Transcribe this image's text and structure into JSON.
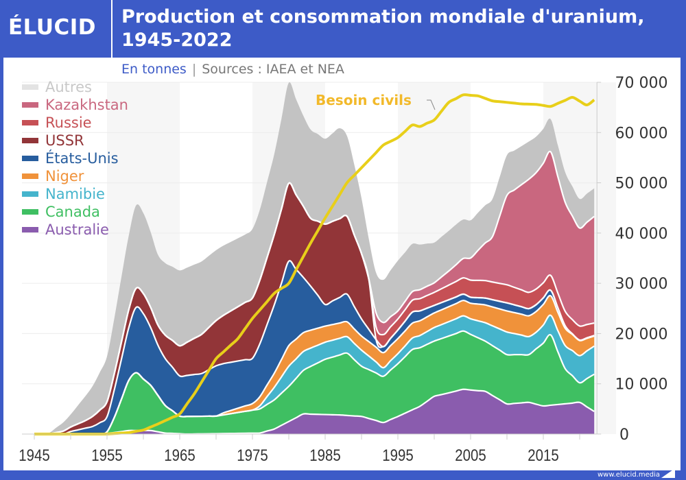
{
  "brand": {
    "logo": "ÉLUCID",
    "url": "www.elucid.media"
  },
  "colors": {
    "brand_blue": "#3d5bc7",
    "demand_line": "#e8cf1a",
    "demand_label": "#f2b92a"
  },
  "chart_data": {
    "type": "area",
    "stacked": true,
    "title": "Production et consommation mondiale d'uranium, 1945-2022",
    "subtitle_unit": "En tonnes",
    "subtitle_sources": "Sources : IAEA et NEA",
    "xlabel": "",
    "ylabel": "",
    "xlim": [
      1945,
      2022
    ],
    "ylim": [
      0,
      70000
    ],
    "x_ticks": [
      "1945",
      "1955",
      "1965",
      "1975",
      "1985",
      "1995",
      "2005",
      "2015"
    ],
    "y_ticks": [
      "0",
      "10 000",
      "20 000",
      "30 000",
      "40 000",
      "50 000",
      "60 000",
      "70 000"
    ],
    "y_tick_values": [
      0,
      10000,
      20000,
      30000,
      40000,
      50000,
      60000,
      70000
    ],
    "grid": true,
    "legend_position": "top-left",
    "series": [
      {
        "name": "Australie",
        "color": "#8a5cae",
        "points": [
          [
            1945,
            0
          ],
          [
            1954,
            0
          ],
          [
            1956,
            300
          ],
          [
            1958,
            700
          ],
          [
            1961,
            700
          ],
          [
            1963,
            200
          ],
          [
            1966,
            0
          ],
          [
            1976,
            200
          ],
          [
            1978,
            1000
          ],
          [
            1980,
            2500
          ],
          [
            1982,
            4000
          ],
          [
            1987,
            3800
          ],
          [
            1990,
            3500
          ],
          [
            1993,
            2300
          ],
          [
            1995,
            3500
          ],
          [
            1998,
            5500
          ],
          [
            2000,
            7500
          ],
          [
            2004,
            8900
          ],
          [
            2007,
            8500
          ],
          [
            2010,
            6000
          ],
          [
            2013,
            6300
          ],
          [
            2015,
            5600
          ],
          [
            2020,
            6300
          ],
          [
            2022,
            4500
          ]
        ]
      },
      {
        "name": "Canada",
        "color": "#3fbf62",
        "points": [
          [
            1945,
            0
          ],
          [
            1954,
            0
          ],
          [
            1955,
            300
          ],
          [
            1956,
            3000
          ],
          [
            1958,
            10000
          ],
          [
            1959,
            11500
          ],
          [
            1961,
            9000
          ],
          [
            1963,
            5500
          ],
          [
            1965,
            3500
          ],
          [
            1970,
            3500
          ],
          [
            1976,
            4800
          ],
          [
            1978,
            5800
          ],
          [
            1980,
            7000
          ],
          [
            1983,
            9500
          ],
          [
            1985,
            11000
          ],
          [
            1988,
            12400
          ],
          [
            1990,
            10000
          ],
          [
            1993,
            9200
          ],
          [
            1995,
            10500
          ],
          [
            1997,
            12000
          ],
          [
            2000,
            11000
          ],
          [
            2004,
            11600
          ],
          [
            2007,
            10000
          ],
          [
            2010,
            9800
          ],
          [
            2013,
            9500
          ],
          [
            2016,
            14000
          ],
          [
            2018,
            7000
          ],
          [
            2020,
            3900
          ],
          [
            2022,
            7400
          ]
        ]
      },
      {
        "name": "Namibie",
        "color": "#45b4cc",
        "points": [
          [
            1945,
            0
          ],
          [
            1975,
            0
          ],
          [
            1976,
            600
          ],
          [
            1978,
            2500
          ],
          [
            1980,
            4000
          ],
          [
            1985,
            3400
          ],
          [
            1990,
            3200
          ],
          [
            1993,
            1700
          ],
          [
            1995,
            2000
          ],
          [
            2000,
            2700
          ],
          [
            2005,
            3100
          ],
          [
            2010,
            4500
          ],
          [
            2014,
            3300
          ],
          [
            2017,
            4200
          ],
          [
            2020,
            5400
          ],
          [
            2022,
            5600
          ]
        ]
      },
      {
        "name": "Niger",
        "color": "#f0923a",
        "points": [
          [
            1945,
            0
          ],
          [
            1970,
            0
          ],
          [
            1971,
            400
          ],
          [
            1975,
            1300
          ],
          [
            1978,
            2800
          ],
          [
            1980,
            4100
          ],
          [
            1985,
            3200
          ],
          [
            1990,
            2800
          ],
          [
            1993,
            3000
          ],
          [
            1995,
            3000
          ],
          [
            2000,
            2900
          ],
          [
            2005,
            3100
          ],
          [
            2010,
            4200
          ],
          [
            2015,
            4100
          ],
          [
            2020,
            3000
          ],
          [
            2022,
            2000
          ]
        ]
      },
      {
        "name": "États-Unis",
        "color": "#275d9e",
        "points": [
          [
            1945,
            0
          ],
          [
            1949,
            0
          ],
          [
            1950,
            500
          ],
          [
            1953,
            1500
          ],
          [
            1955,
            3000
          ],
          [
            1957,
            8000
          ],
          [
            1959,
            13000
          ],
          [
            1960,
            13000
          ],
          [
            1962,
            10000
          ],
          [
            1965,
            8000
          ],
          [
            1968,
            8500
          ],
          [
            1970,
            10000
          ],
          [
            1975,
            9000
          ],
          [
            1977,
            12000
          ],
          [
            1980,
            16800
          ],
          [
            1982,
            11000
          ],
          [
            1985,
            4300
          ],
          [
            1988,
            5500
          ],
          [
            1990,
            3400
          ],
          [
            1992,
            1500
          ],
          [
            1993,
            1200
          ],
          [
            1997,
            2200
          ],
          [
            2000,
            1500
          ],
          [
            2005,
            1200
          ],
          [
            2010,
            1600
          ],
          [
            2015,
            1300
          ],
          [
            2017,
            900
          ],
          [
            2019,
            100
          ],
          [
            2022,
            100
          ]
        ]
      },
      {
        "name": "USSR",
        "color": "#923538",
        "points": [
          [
            1945,
            0
          ],
          [
            1947,
            0
          ],
          [
            1948,
            300
          ],
          [
            1952,
            1500
          ],
          [
            1955,
            3000
          ],
          [
            1960,
            4000
          ],
          [
            1962,
            4000
          ],
          [
            1965,
            6000
          ],
          [
            1970,
            9000
          ],
          [
            1975,
            12000
          ],
          [
            1978,
            14000
          ],
          [
            1980,
            15500
          ],
          [
            1983,
            13500
          ],
          [
            1985,
            16000
          ],
          [
            1988,
            15500
          ],
          [
            1990,
            13000
          ],
          [
            1991,
            10000
          ],
          [
            1992,
            0
          ],
          [
            2022,
            0
          ]
        ]
      },
      {
        "name": "Russie",
        "color": "#c65055",
        "points": [
          [
            1945,
            0
          ],
          [
            1991,
            0
          ],
          [
            1992,
            2500
          ],
          [
            1995,
            2200
          ],
          [
            2000,
            2600
          ],
          [
            2005,
            3400
          ],
          [
            2010,
            3600
          ],
          [
            2015,
            3000
          ],
          [
            2020,
            2800
          ],
          [
            2022,
            2500
          ]
        ]
      },
      {
        "name": "Kazakhstan",
        "color": "#c9677f",
        "points": [
          [
            1945,
            0
          ],
          [
            1991,
            0
          ],
          [
            1992,
            2800
          ],
          [
            1995,
            1600
          ],
          [
            2000,
            1900
          ],
          [
            2002,
            2800
          ],
          [
            2005,
            4400
          ],
          [
            2008,
            9000
          ],
          [
            2010,
            17800
          ],
          [
            2013,
            22500
          ],
          [
            2015,
            23800
          ],
          [
            2016,
            24600
          ],
          [
            2018,
            21700
          ],
          [
            2020,
            19500
          ],
          [
            2022,
            21200
          ]
        ]
      },
      {
        "name": "Autres",
        "color": "#c3c3c3",
        "points": [
          [
            1945,
            0
          ],
          [
            1947,
            200
          ],
          [
            1950,
            2500
          ],
          [
            1953,
            6000
          ],
          [
            1955,
            9000
          ],
          [
            1957,
            13000
          ],
          [
            1959,
            16500
          ],
          [
            1960,
            16000
          ],
          [
            1962,
            14000
          ],
          [
            1965,
            15000
          ],
          [
            1968,
            14500
          ],
          [
            1970,
            14000
          ],
          [
            1974,
            13500
          ],
          [
            1976,
            14000
          ],
          [
            1978,
            16000
          ],
          [
            1980,
            20000
          ],
          [
            1982,
            18000
          ],
          [
            1985,
            17000
          ],
          [
            1987,
            18000
          ],
          [
            1989,
            14000
          ],
          [
            1991,
            8000
          ],
          [
            1992,
            8000
          ],
          [
            1993,
            8500
          ],
          [
            1995,
            10000
          ],
          [
            1997,
            9500
          ],
          [
            2000,
            8000
          ],
          [
            2003,
            8000
          ],
          [
            2005,
            7500
          ],
          [
            2008,
            7500
          ],
          [
            2010,
            8000
          ],
          [
            2013,
            7500
          ],
          [
            2016,
            6500
          ],
          [
            2018,
            6000
          ],
          [
            2020,
            5800
          ],
          [
            2022,
            5600
          ]
        ]
      }
    ],
    "line_series": {
      "name": "Besoin civils",
      "color": "#e8cf1a",
      "points": [
        [
          1945,
          0
        ],
        [
          1955,
          0
        ],
        [
          1958,
          300
        ],
        [
          1960,
          800
        ],
        [
          1962,
          2000
        ],
        [
          1965,
          4000
        ],
        [
          1967,
          8000
        ],
        [
          1970,
          15000
        ],
        [
          1973,
          19000
        ],
        [
          1975,
          23000
        ],
        [
          1978,
          28000
        ],
        [
          1980,
          30000
        ],
        [
          1983,
          38000
        ],
        [
          1985,
          43000
        ],
        [
          1988,
          50000
        ],
        [
          1990,
          53000
        ],
        [
          1993,
          57500
        ],
        [
          1995,
          59000
        ],
        [
          1997,
          61500
        ],
        [
          1998,
          61200
        ],
        [
          2000,
          62500
        ],
        [
          2002,
          66000
        ],
        [
          2004,
          67500
        ],
        [
          2006,
          67300
        ],
        [
          2008,
          66300
        ],
        [
          2010,
          66000
        ],
        [
          2012,
          65700
        ],
        [
          2014,
          65600
        ],
        [
          2016,
          65200
        ],
        [
          2019,
          67000
        ],
        [
          2021,
          65500
        ],
        [
          2022,
          66500
        ]
      ]
    },
    "annotations": [
      {
        "text": "Besoin civils",
        "target": "line_series"
      }
    ]
  },
  "legend_order": [
    "Autres",
    "Kazakhstan",
    "Russie",
    "USSR",
    "États-Unis",
    "Niger",
    "Namibie",
    "Canada",
    "Australie"
  ]
}
